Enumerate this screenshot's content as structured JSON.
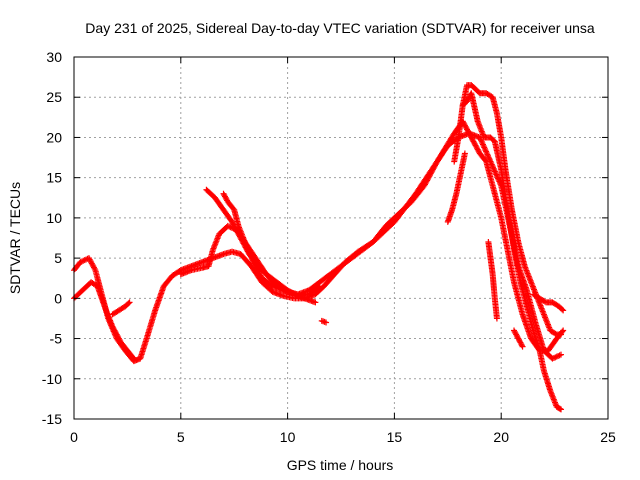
{
  "chart_data": {
    "type": "scatter",
    "title": "Day 231 of 2025, Sidereal Day-to-day VTEC variation (SDTVAR) for receiver unsa",
    "xlabel": "GPS time / hours",
    "ylabel": "SDTVAR / TECUs",
    "xlim": [
      0,
      25
    ],
    "ylim": [
      -15,
      30
    ],
    "xticks": [
      0,
      5,
      10,
      15,
      20,
      25
    ],
    "yticks": [
      -15,
      -10,
      -5,
      0,
      5,
      10,
      15,
      20,
      25,
      30
    ],
    "grid": true,
    "marker": "+",
    "color": "#ff0000",
    "series": [
      {
        "name": "track-1",
        "points": [
          [
            0.0,
            3.5
          ],
          [
            0.3,
            4.5
          ],
          [
            0.7,
            5.0
          ],
          [
            1.0,
            3.5
          ],
          [
            1.3,
            0.5
          ],
          [
            1.6,
            -2.5
          ],
          [
            2.0,
            -5.0
          ],
          [
            2.4,
            -6.5
          ],
          [
            2.8,
            -7.8
          ],
          [
            3.1,
            -7.5
          ],
          [
            3.4,
            -5.0
          ],
          [
            3.8,
            -1.5
          ],
          [
            4.2,
            1.5
          ],
          [
            4.6,
            2.8
          ],
          [
            5.0,
            3.5
          ],
          [
            5.5,
            4.0
          ],
          [
            6.0,
            4.5
          ],
          [
            6.5,
            5.0
          ],
          [
            7.0,
            5.5
          ],
          [
            7.4,
            5.8
          ],
          [
            7.8,
            5.5
          ],
          [
            8.3,
            4.0
          ],
          [
            8.8,
            2.0
          ],
          [
            9.3,
            0.8
          ],
          [
            9.8,
            0.3
          ],
          [
            10.3,
            0.0
          ],
          [
            10.8,
            0.0
          ],
          [
            11.3,
            0.5
          ],
          [
            11.7,
            1.5
          ],
          [
            12.2,
            3.0
          ],
          [
            12.7,
            4.5
          ],
          [
            13.3,
            5.8
          ],
          [
            14.0,
            7.0
          ],
          [
            14.6,
            9.0
          ],
          [
            15.2,
            10.5
          ],
          [
            15.8,
            12.0
          ],
          [
            16.4,
            14.0
          ],
          [
            17.0,
            17.0
          ],
          [
            17.5,
            19.0
          ],
          [
            18.0,
            20.0
          ],
          [
            18.5,
            20.5
          ],
          [
            19.0,
            20.0
          ],
          [
            19.5,
            17.0
          ],
          [
            20.0,
            14.0
          ],
          [
            20.4,
            9.0
          ],
          [
            20.8,
            4.0
          ],
          [
            21.2,
            1.0
          ],
          [
            21.6,
            -3.0
          ],
          [
            22.0,
            -6.5
          ],
          [
            22.4,
            -7.5
          ],
          [
            22.8,
            -7.0
          ]
        ]
      },
      {
        "name": "track-2",
        "points": [
          [
            5.0,
            3.0
          ],
          [
            5.5,
            3.5
          ],
          [
            6.0,
            3.8
          ],
          [
            6.3,
            4.0
          ],
          [
            6.5,
            6.0
          ],
          [
            6.8,
            8.0
          ],
          [
            7.2,
            9.0
          ],
          [
            7.6,
            8.5
          ],
          [
            8.0,
            7.0
          ],
          [
            8.5,
            5.0
          ],
          [
            9.0,
            3.0
          ],
          [
            9.5,
            1.5
          ],
          [
            10.0,
            0.8
          ],
          [
            10.5,
            0.5
          ],
          [
            11.0,
            1.0
          ],
          [
            11.5,
            2.0
          ],
          [
            12.0,
            3.0
          ],
          [
            13.0,
            5.0
          ],
          [
            14.0,
            7.0
          ],
          [
            15.0,
            9.5
          ],
          [
            16.0,
            13.0
          ],
          [
            17.0,
            17.0
          ],
          [
            17.8,
            20.5
          ],
          [
            18.2,
            22.0
          ],
          [
            18.6,
            20.0
          ],
          [
            19.0,
            18.0
          ],
          [
            19.3,
            17.0
          ],
          [
            19.6,
            14.0
          ],
          [
            20.0,
            10.0
          ],
          [
            20.3,
            6.0
          ],
          [
            20.6,
            2.0
          ],
          [
            21.0,
            -2.0
          ],
          [
            21.4,
            -5.0
          ],
          [
            21.8,
            -6.5
          ],
          [
            22.2,
            -6.5
          ],
          [
            22.6,
            -5.0
          ],
          [
            22.9,
            -4.0
          ]
        ]
      },
      {
        "name": "track-3",
        "points": [
          [
            6.2,
            13.5
          ],
          [
            6.6,
            12.5
          ],
          [
            7.0,
            11.0
          ],
          [
            7.4,
            9.5
          ],
          [
            7.8,
            7.5
          ],
          [
            8.2,
            5.5
          ],
          [
            8.6,
            4.0
          ],
          [
            9.0,
            3.0
          ],
          [
            9.5,
            2.0
          ],
          [
            10.0,
            1.0
          ],
          [
            10.5,
            0.3
          ],
          [
            11.0,
            0.5
          ],
          [
            11.5,
            1.5
          ]
        ]
      },
      {
        "name": "track-4",
        "points": [
          [
            7.0,
            13.0
          ],
          [
            7.2,
            12.0
          ],
          [
            7.5,
            11.0
          ],
          [
            7.7,
            9.0
          ],
          [
            8.0,
            7.0
          ],
          [
            8.4,
            4.5
          ],
          [
            8.8,
            2.5
          ],
          [
            9.3,
            1.5
          ],
          [
            9.8,
            1.0
          ],
          [
            10.3,
            0.5
          ],
          [
            10.8,
            0.0
          ],
          [
            11.3,
            -0.5
          ]
        ]
      },
      {
        "name": "track-5",
        "points": [
          [
            0.0,
            0.0
          ],
          [
            0.4,
            1.0
          ],
          [
            0.8,
            2.0
          ],
          [
            1.1,
            1.5
          ],
          [
            1.3,
            0.0
          ],
          [
            1.5,
            -1.5
          ],
          [
            1.8,
            -3.5
          ],
          [
            2.2,
            -5.5
          ],
          [
            2.5,
            -6.5
          ],
          [
            2.8,
            -7.5
          ]
        ]
      },
      {
        "name": "track-6",
        "points": [
          [
            1.8,
            -2.0
          ],
          [
            2.1,
            -1.5
          ],
          [
            2.4,
            -1.0
          ],
          [
            2.6,
            -0.5
          ]
        ]
      },
      {
        "name": "track-7",
        "points": [
          [
            17.8,
            17.0
          ],
          [
            18.0,
            20.0
          ],
          [
            18.2,
            24.0
          ],
          [
            18.4,
            26.5
          ],
          [
            18.6,
            26.5
          ],
          [
            18.8,
            26.0
          ],
          [
            19.0,
            25.5
          ],
          [
            19.3,
            25.5
          ],
          [
            19.6,
            25.0
          ],
          [
            19.8,
            23.0
          ],
          [
            20.0,
            20.0
          ],
          [
            20.2,
            16.0
          ],
          [
            20.5,
            11.0
          ],
          [
            20.8,
            7.0
          ],
          [
            21.1,
            4.0
          ],
          [
            21.4,
            2.0
          ],
          [
            21.7,
            0.0
          ],
          [
            22.0,
            -2.0
          ],
          [
            22.3,
            -4.0
          ],
          [
            22.6,
            -4.5
          ],
          [
            22.8,
            -4.5
          ]
        ]
      },
      {
        "name": "track-8",
        "points": [
          [
            18.2,
            24.0
          ],
          [
            18.4,
            24.5
          ],
          [
            18.6,
            25.5
          ],
          [
            18.9,
            22.0
          ],
          [
            19.2,
            20.0
          ],
          [
            19.5,
            20.0
          ],
          [
            19.7,
            19.5
          ],
          [
            20.0,
            16.0
          ],
          [
            20.3,
            11.0
          ],
          [
            20.6,
            6.0
          ],
          [
            20.9,
            2.0
          ],
          [
            21.2,
            -1.0
          ],
          [
            21.5,
            -4.0
          ],
          [
            21.8,
            -6.5
          ],
          [
            22.0,
            -9.0
          ],
          [
            22.3,
            -11.5
          ],
          [
            22.6,
            -13.5
          ],
          [
            22.8,
            -13.8
          ]
        ]
      },
      {
        "name": "track-9",
        "points": [
          [
            17.5,
            9.5
          ],
          [
            17.7,
            11.0
          ],
          [
            17.9,
            13.0
          ],
          [
            18.1,
            15.5
          ],
          [
            18.3,
            18.0
          ]
        ]
      },
      {
        "name": "track-10",
        "points": [
          [
            19.4,
            7.0
          ],
          [
            19.5,
            5.0
          ],
          [
            19.6,
            3.0
          ],
          [
            19.7,
            0.0
          ],
          [
            19.8,
            -2.5
          ]
        ]
      },
      {
        "name": "track-11",
        "points": [
          [
            20.6,
            -4.0
          ],
          [
            20.8,
            -5.0
          ],
          [
            21.0,
            -6.0
          ]
        ]
      },
      {
        "name": "track-12",
        "points": [
          [
            21.5,
            0.5
          ],
          [
            21.8,
            0.0
          ],
          [
            22.1,
            -0.5
          ],
          [
            22.4,
            -0.5
          ],
          [
            22.7,
            -1.0
          ],
          [
            22.9,
            -1.5
          ]
        ]
      },
      {
        "name": "track-13",
        "points": [
          [
            11.6,
            -2.8
          ],
          [
            11.8,
            -3.0
          ]
        ]
      }
    ]
  }
}
